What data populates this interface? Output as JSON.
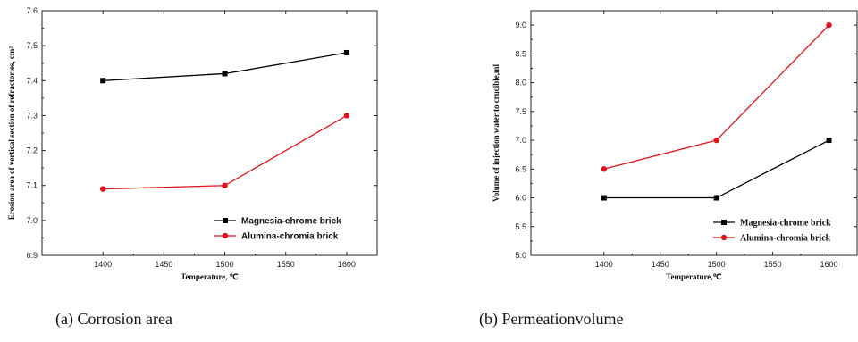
{
  "chart_data": [
    {
      "type": "line",
      "title": "",
      "xlabel": "Temperature, ℃",
      "ylabel": "Erosion area of vertical section of refractories, cm²",
      "x": [
        1400,
        1500,
        1600
      ],
      "xlim": [
        1350,
        1625
      ],
      "ylim": [
        6.9,
        7.6
      ],
      "xticks": [
        "1400",
        "1450",
        "1500",
        "1550",
        "1600"
      ],
      "yticks": [
        "6.9",
        "7.0",
        "7.1",
        "7.2",
        "7.3",
        "7.4",
        "7.5",
        "7.6"
      ],
      "grid": false,
      "legend_position": "bottom-right",
      "series": [
        {
          "name": "Magnesia-chrome brick",
          "values": [
            7.4,
            7.42,
            7.48
          ],
          "color": "#000000",
          "marker": "square"
        },
        {
          "name": "Alumina-chromia brick",
          "values": [
            7.09,
            7.1,
            7.3
          ],
          "color": "#e0151b",
          "marker": "circle"
        }
      ],
      "caption": "(a) Corrosion area"
    },
    {
      "type": "line",
      "title": "",
      "xlabel": "Temperature,℃",
      "ylabel": "Volume of injection water to crucible,ml",
      "x": [
        1400,
        1500,
        1600
      ],
      "xlim": [
        1335,
        1625
      ],
      "ylim": [
        5.0,
        9.25
      ],
      "xticks": [
        "1400",
        "1450",
        "1500",
        "1550",
        "1600"
      ],
      "yticks": [
        "5.0",
        "5.5",
        "6.0",
        "6.5",
        "7.0",
        "7.5",
        "8.0",
        "8.5",
        "9.0"
      ],
      "grid": false,
      "legend_position": "bottom-right",
      "series": [
        {
          "name": "Magnesia-chrome brick",
          "values": [
            6.0,
            6.0,
            7.0
          ],
          "color": "#000000",
          "marker": "square"
        },
        {
          "name": "Alumina-chromia brick",
          "values": [
            6.5,
            7.0,
            9.0
          ],
          "color": "#e0151b",
          "marker": "circle"
        }
      ],
      "caption": "(b) Permeationvolume"
    }
  ]
}
